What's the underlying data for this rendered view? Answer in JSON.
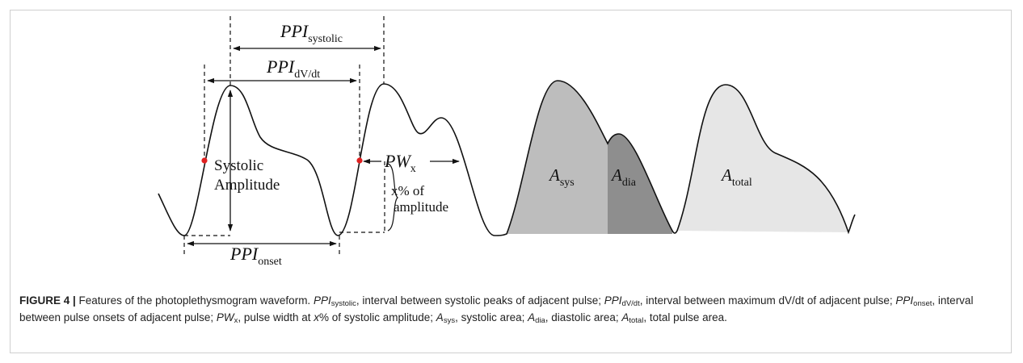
{
  "diagram": {
    "labels": {
      "ppi_systolic": {
        "main": "PPI",
        "sub": "systolic"
      },
      "ppi_dvdt": {
        "main": "PPI",
        "sub": "dV/dt"
      },
      "ppi_onset": {
        "main": "PPI",
        "sub": "onset"
      },
      "pw_x": {
        "main": "PW",
        "sub": "x"
      },
      "systolic_amplitude_line1": "Systolic",
      "systolic_amplitude_line2": "Amplitude",
      "x_percent_line1": "x% of",
      "x_percent_line2": "amplitude",
      "a_sys": {
        "main": "A",
        "sub": "sys"
      },
      "a_dia": {
        "main": "A",
        "sub": "dia"
      },
      "a_total": {
        "main": "A",
        "sub": "total"
      }
    },
    "colors": {
      "line": "#111111",
      "marker": "#e02020",
      "a_sys_fill": "#bdbdbd",
      "a_dia_fill": "#8e8e8e",
      "a_total_fill": "#e6e6e6"
    }
  },
  "caption": {
    "figure_label": "FIGURE 4 |",
    "text1": " Features of the photoplethysmogram waveform. ",
    "t_ppi": "PPI",
    "t_sub_systolic": "systolic",
    "text2": ", interval between systolic peaks of adjacent pulse; ",
    "t_sub_dvdt": "dV/dt",
    "text3": ", interval between maximum dV/dt of adjacent pulse; ",
    "t_sub_onset": "onset",
    "text4": ", interval between pulse onsets of adjacent pulse; ",
    "t_pw": "PW",
    "t_sub_x": "x",
    "text5": ", pulse width at ",
    "t_x": "x",
    "text6": "% of systolic amplitude; ",
    "t_a": "A",
    "t_sub_sys": "sys",
    "text7": ", systolic area; ",
    "t_sub_dia": "dia",
    "text8": ", diastolic area; ",
    "t_sub_total": "total",
    "text9": ", total pulse area."
  }
}
